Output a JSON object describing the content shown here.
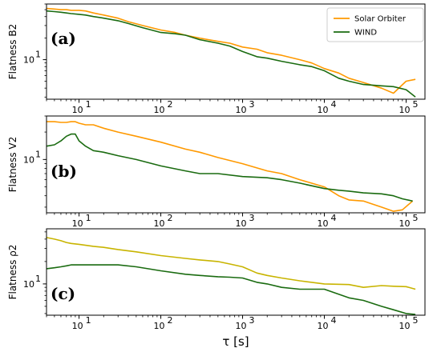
{
  "chart_data": [
    {
      "type": "line",
      "panel_label": "(a)",
      "ylabel": "Flatness B2",
      "yscale": "log",
      "ylim": [
        2.8,
        60
      ],
      "y_ticks": [
        {
          "value": 10,
          "label": "10"
        }
      ],
      "x_ticks": [
        {
          "value": 10,
          "label": "10"
        },
        {
          "value": 100,
          "label": "10"
        },
        {
          "value": 1000,
          "label": "10"
        },
        {
          "value": 10000,
          "label": "10"
        },
        {
          "value": 100000,
          "label": "10"
        }
      ],
      "x_tick_exponents": [
        "1",
        "2",
        "3",
        "4",
        "5"
      ],
      "legend": {
        "placement": "top-right",
        "entries": [
          "Solar Orbiter",
          "WIND"
        ]
      },
      "series": [
        {
          "name": "Solar Orbiter",
          "color": "#ff9900",
          "x": [
            4,
            5,
            6,
            7,
            8,
            10,
            12,
            15,
            20,
            30,
            40,
            60,
            100,
            150,
            200,
            300,
            500,
            700,
            1000,
            1500,
            2000,
            3000,
            5000,
            7000,
            10000,
            15000,
            20000,
            30000,
            50000,
            70000,
            100000,
            130000
          ],
          "y": [
            52,
            51,
            50,
            50,
            49,
            49,
            48,
            45,
            42,
            38,
            34,
            30,
            26,
            24,
            22,
            20,
            18,
            17,
            15,
            14,
            12.5,
            11.5,
            10,
            9,
            7.5,
            6.5,
            5.5,
            4.8,
            4,
            3.4,
            5,
            5.3
          ]
        },
        {
          "name": "WIND",
          "color": "#1a6b10",
          "x": [
            4,
            5,
            6,
            7,
            8,
            10,
            12,
            15,
            20,
            30,
            40,
            60,
            100,
            150,
            200,
            300,
            500,
            700,
            1000,
            1500,
            2000,
            3000,
            5000,
            7000,
            10000,
            15000,
            20000,
            30000,
            50000,
            70000,
            100000,
            130000
          ],
          "y": [
            48,
            47,
            46,
            45,
            44,
            43,
            42,
            40,
            38,
            35,
            32,
            28,
            24,
            23,
            22,
            19,
            17,
            15.5,
            13,
            11,
            10.5,
            9.5,
            8.5,
            8,
            7,
            5.5,
            5,
            4.5,
            4.3,
            4.2,
            3.8,
            3
          ]
        }
      ]
    },
    {
      "type": "line",
      "panel_label": "(b)",
      "ylabel": "Flatness V2",
      "yscale": "log",
      "ylim": [
        2.6,
        30
      ],
      "y_ticks": [
        {
          "value": 10,
          "label": "10"
        }
      ],
      "x_ticks": [
        {
          "value": 10,
          "label": "10"
        },
        {
          "value": 100,
          "label": "10"
        },
        {
          "value": 1000,
          "label": "10"
        },
        {
          "value": 10000,
          "label": "10"
        },
        {
          "value": 100000,
          "label": "10"
        }
      ],
      "x_tick_exponents": [
        "1",
        "2",
        "3",
        "4",
        "5"
      ],
      "series": [
        {
          "name": "Solar Orbiter",
          "color": "#ff9900",
          "x": [
            4,
            5,
            6,
            7,
            8,
            9,
            10,
            12,
            15,
            20,
            30,
            50,
            100,
            200,
            300,
            500,
            1000,
            2000,
            3000,
            5000,
            10000,
            15000,
            20000,
            30000,
            50000,
            70000,
            90000,
            120000
          ],
          "y": [
            26,
            26,
            25.5,
            25.5,
            26,
            26,
            25,
            24,
            24,
            22,
            20,
            18,
            15.5,
            13,
            12,
            10.5,
            9,
            7.5,
            7,
            6,
            5,
            4,
            3.6,
            3.5,
            3,
            2.7,
            2.8,
            3.5
          ]
        },
        {
          "name": "WIND",
          "color": "#1a6b10",
          "x": [
            4,
            5,
            6,
            7,
            8,
            9,
            10,
            12,
            15,
            20,
            30,
            50,
            100,
            200,
            300,
            500,
            1000,
            2000,
            3000,
            5000,
            10000,
            15000,
            20000,
            30000,
            50000,
            70000,
            90000,
            120000
          ],
          "y": [
            14,
            14.5,
            16,
            18,
            19,
            19,
            16,
            14,
            12.5,
            12,
            11,
            10,
            8.5,
            7.5,
            7,
            7,
            6.5,
            6.3,
            6,
            5.5,
            4.8,
            4.6,
            4.5,
            4.3,
            4.2,
            4,
            3.7,
            3.5
          ]
        }
      ]
    },
    {
      "type": "line",
      "panel_label": "(c)",
      "ylabel": "Flatness ρ2",
      "yscale": "log",
      "ylim": [
        3.8,
        55
      ],
      "y_ticks": [
        {
          "value": 10,
          "label": "10"
        }
      ],
      "x_ticks": [
        {
          "value": 10,
          "label": "10"
        },
        {
          "value": 100,
          "label": "10"
        },
        {
          "value": 1000,
          "label": "10"
        },
        {
          "value": 10000,
          "label": "10"
        },
        {
          "value": 100000,
          "label": "10"
        }
      ],
      "x_tick_exponents": [
        "1",
        "2",
        "3",
        "4",
        "5"
      ],
      "xlabel": "τ [s]",
      "series": [
        {
          "name": "Solar Orbiter",
          "color": "#c8b400",
          "x": [
            4,
            5,
            6,
            7,
            8,
            10,
            12,
            15,
            20,
            30,
            50,
            100,
            200,
            300,
            500,
            700,
            1000,
            1500,
            2000,
            3000,
            5000,
            10000,
            20000,
            30000,
            50000,
            70000,
            100000,
            130000
          ],
          "y": [
            42,
            40,
            38,
            36,
            35,
            34,
            33,
            32,
            31,
            29,
            27,
            24,
            22,
            21,
            20,
            18.5,
            17,
            14,
            13,
            12,
            11,
            10,
            9.8,
            9,
            9.5,
            9.3,
            9.2,
            8.5
          ]
        },
        {
          "name": "WIND",
          "color": "#1a6b10",
          "x": [
            4,
            5,
            6,
            7,
            8,
            10,
            12,
            15,
            20,
            30,
            50,
            100,
            200,
            300,
            500,
            700,
            1000,
            1500,
            2000,
            3000,
            5000,
            10000,
            20000,
            30000,
            50000,
            70000,
            100000,
            130000
          ],
          "y": [
            16,
            16.5,
            17,
            17.5,
            18,
            18,
            18,
            18,
            18,
            18,
            17,
            15,
            13.5,
            13,
            12.5,
            12.3,
            12,
            10.5,
            10,
            9,
            8.5,
            8.5,
            6.5,
            6,
            5,
            4.5,
            4,
            3.9
          ]
        }
      ]
    }
  ]
}
